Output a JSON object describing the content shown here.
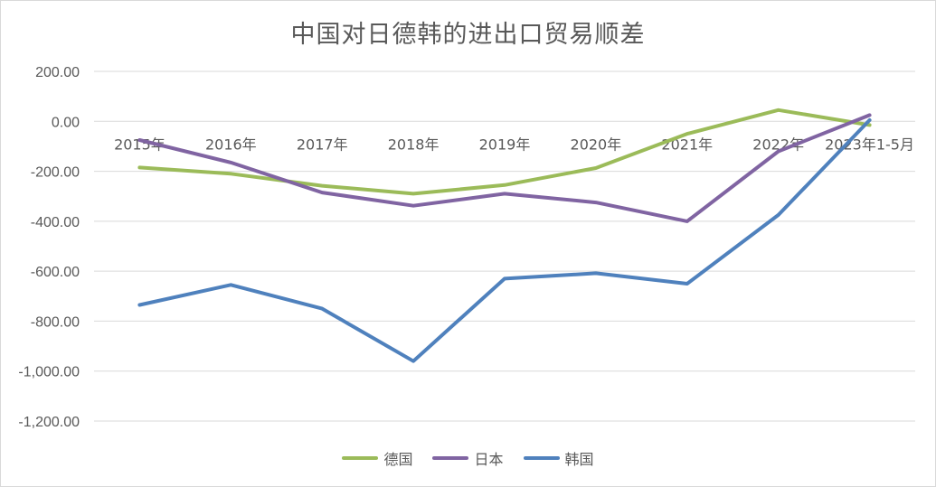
{
  "chart_data": {
    "type": "line",
    "title": "中国对日德韩的进出口贸易顺差",
    "categories": [
      "2015年",
      "2016年",
      "2017年",
      "2018年",
      "2019年",
      "2020年",
      "2021年",
      "2022年",
      "2023年1-5月"
    ],
    "y_ticks": [
      "200.00",
      "0.00",
      "-200.00",
      "-400.00",
      "-600.00",
      "-800.00",
      "-1,000.00",
      "-1,200.00"
    ],
    "ylim": [
      -1200,
      200
    ],
    "grid": true,
    "legend_position": "bottom",
    "series": [
      {
        "name": "德国",
        "color": "#9bbb59",
        "values": [
          -185,
          -210,
          -258,
          -290,
          -255,
          -187,
          -50,
          45,
          -15
        ]
      },
      {
        "name": "日本",
        "color": "#8064a2",
        "values": [
          -75,
          -165,
          -285,
          -338,
          -290,
          -325,
          -400,
          -120,
          25
        ]
      },
      {
        "name": "韩国",
        "color": "#4f81bd",
        "values": [
          -735,
          -655,
          -750,
          -960,
          -630,
          -608,
          -650,
          -375,
          5
        ]
      }
    ]
  }
}
